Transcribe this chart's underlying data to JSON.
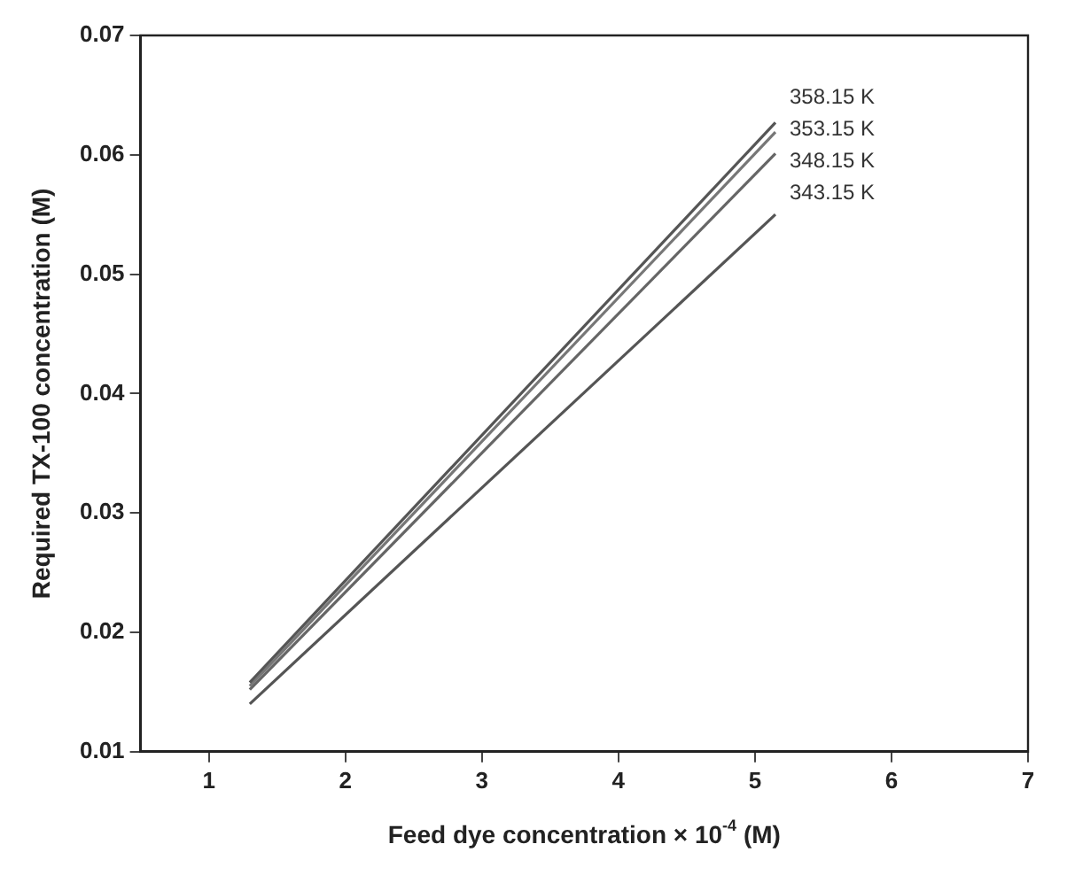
{
  "chart_data": {
    "type": "line",
    "xlabel": "Feed dye concentration × 10$^{-4}$ (M)",
    "ylabel": "Required TX-100 concentration (M)",
    "xlim": [
      0.5,
      7
    ],
    "xticks": [
      1,
      2,
      3,
      4,
      5,
      6,
      7
    ],
    "ylim": [
      0.01,
      0.07
    ],
    "yticks": [
      0.01,
      0.02,
      0.03,
      0.04,
      0.05,
      0.06,
      0.07
    ],
    "grid": false,
    "legend": false,
    "marker": "none",
    "line_style": "solid",
    "x": [
      1.3,
      5.15
    ],
    "series": [
      {
        "name": "358.15 K",
        "color": "#555555",
        "values": [
          0.0158,
          0.0627
        ]
      },
      {
        "name": "353.15 K",
        "color": "#777777",
        "values": [
          0.0155,
          0.0619
        ]
      },
      {
        "name": "348.15 K",
        "color": "#666666",
        "values": [
          0.0152,
          0.0601
        ]
      },
      {
        "name": "343.15 K",
        "color": "#555555",
        "values": [
          0.014,
          0.055
        ]
      }
    ]
  }
}
